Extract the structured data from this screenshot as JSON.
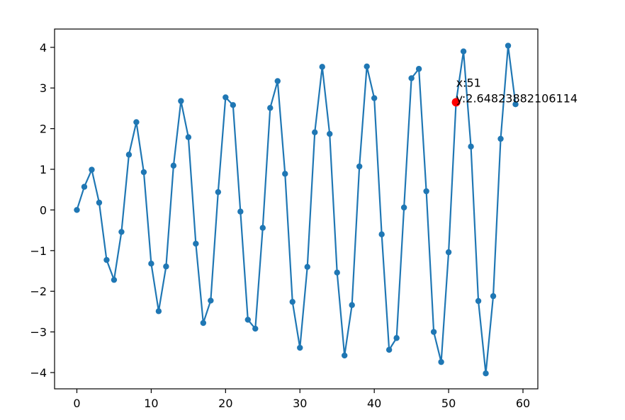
{
  "chart_data": {
    "type": "line",
    "title": "",
    "xlabel": "",
    "ylabel": "",
    "xlim": [
      -3,
      62
    ],
    "ylim": [
      -4.4,
      4.45
    ],
    "grid": false,
    "x_ticks": [
      0,
      10,
      20,
      30,
      40,
      50,
      60
    ],
    "y_ticks": [
      -4,
      -3,
      -2,
      -1,
      0,
      1,
      2,
      3,
      4
    ],
    "x_tick_labels": [
      "0",
      "10",
      "20",
      "30",
      "40",
      "50",
      "60"
    ],
    "y_tick_labels": [
      "−4",
      "−3",
      "−2",
      "−1",
      "0",
      "1",
      "2",
      "3",
      "4"
    ],
    "series": [
      {
        "color": "#1f77b4",
        "marker": "circle",
        "x": [
          0,
          1,
          2,
          3,
          4,
          5,
          6,
          7,
          8,
          9,
          10,
          11,
          12,
          13,
          14,
          15,
          16,
          17,
          18,
          19,
          20,
          21,
          22,
          23,
          24,
          25,
          26,
          27,
          28,
          29,
          30,
          31,
          32,
          33,
          34,
          35,
          36,
          37,
          38,
          39,
          40,
          41,
          42,
          43,
          44,
          45,
          46,
          47,
          48,
          49,
          50,
          51,
          52,
          53,
          54,
          55,
          56,
          57,
          58,
          59
        ],
        "values": [
          0.0,
          0.57,
          0.99,
          0.18,
          -1.23,
          -1.72,
          -0.54,
          1.36,
          2.16,
          0.93,
          -1.32,
          -2.49,
          -1.39,
          1.09,
          2.68,
          1.79,
          -0.83,
          -2.78,
          -2.23,
          0.44,
          2.77,
          2.58,
          -0.04,
          -2.7,
          -2.92,
          -0.44,
          2.51,
          3.17,
          0.89,
          -2.26,
          -3.39,
          -1.4,
          1.91,
          3.52,
          1.87,
          -1.54,
          -3.58,
          -2.34,
          1.07,
          3.53,
          2.75,
          -0.6,
          -3.44,
          -3.15,
          0.06,
          3.24,
          3.47,
          0.46,
          -3.0,
          -3.74,
          -1.04,
          2.65,
          3.9,
          1.56,
          -2.24,
          -4.02,
          -2.12,
          1.75,
          4.04,
          2.6
        ]
      }
    ],
    "highlight": {
      "x": 51,
      "y": 2.64823882106114,
      "color": "#ff0000",
      "label_x": "x:51",
      "label_y": "y:2.64823882106114"
    }
  }
}
